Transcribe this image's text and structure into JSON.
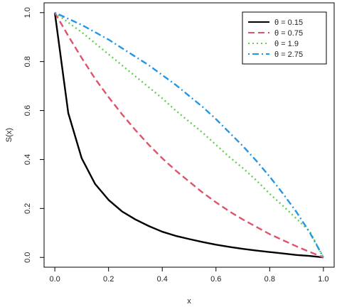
{
  "chart_data": {
    "type": "line",
    "title": "",
    "xlabel": "x",
    "ylabel": "S(x)",
    "xlim": [
      -0.04,
      1.04
    ],
    "ylim": [
      -0.04,
      1.04
    ],
    "x_ticks": [
      0.0,
      0.2,
      0.4,
      0.6,
      0.8,
      1.0
    ],
    "y_ticks": [
      0.0,
      0.2,
      0.4,
      0.6,
      0.8,
      1.0
    ],
    "x_tick_labels": [
      "0.0",
      "0.2",
      "0.4",
      "0.6",
      "0.8",
      "1.0"
    ],
    "y_tick_labels": [
      "0.0",
      "0.2",
      "0.4",
      "0.6",
      "0.8",
      "1.0"
    ],
    "grid": false,
    "legend_position": "top-right",
    "x": [
      0.0,
      0.05,
      0.1,
      0.15,
      0.2,
      0.25,
      0.3,
      0.35,
      0.4,
      0.45,
      0.5,
      0.55,
      0.6,
      0.65,
      0.7,
      0.75,
      0.8,
      0.85,
      0.9,
      0.95,
      1.0
    ],
    "series": [
      {
        "name": "θ = 0.15",
        "color": "#000000",
        "dash": "solid",
        "values": [
          1.0,
          0.59,
          0.405,
          0.3,
          0.235,
          0.188,
          0.155,
          0.128,
          0.105,
          0.088,
          0.075,
          0.063,
          0.052,
          0.043,
          0.035,
          0.028,
          0.022,
          0.016,
          0.01,
          0.006,
          0.0
        ]
      },
      {
        "name": "θ = 0.75",
        "color": "#DF536B",
        "dash": "dashed",
        "values": [
          1.0,
          0.905,
          0.815,
          0.73,
          0.655,
          0.585,
          0.52,
          0.46,
          0.405,
          0.355,
          0.31,
          0.265,
          0.225,
          0.188,
          0.155,
          0.125,
          0.095,
          0.07,
          0.045,
          0.022,
          0.0
        ]
      },
      {
        "name": "θ = 1.9",
        "color": "#61D04F",
        "dash": "dotted",
        "values": [
          1.0,
          0.96,
          0.92,
          0.875,
          0.83,
          0.785,
          0.74,
          0.695,
          0.65,
          0.6,
          0.555,
          0.51,
          0.46,
          0.41,
          0.365,
          0.315,
          0.26,
          0.21,
          0.158,
          0.105,
          0.0
        ]
      },
      {
        "name": "θ = 2.75",
        "color": "#2297E6",
        "dash": "dotdash",
        "values": [
          1.0,
          0.975,
          0.95,
          0.92,
          0.89,
          0.855,
          0.82,
          0.785,
          0.745,
          0.705,
          0.66,
          0.615,
          0.565,
          0.51,
          0.455,
          0.395,
          0.33,
          0.26,
          0.185,
          0.1,
          0.0
        ]
      }
    ]
  }
}
